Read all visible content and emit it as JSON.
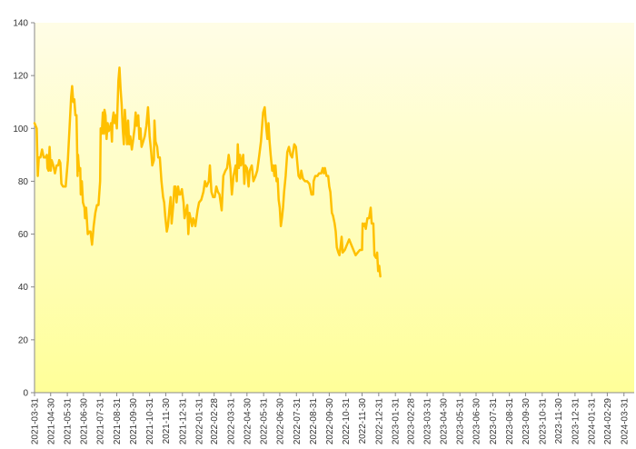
{
  "chart_data": {
    "type": "area",
    "title": "",
    "xlabel": "",
    "ylabel": "",
    "ylim": [
      0,
      140
    ],
    "yticks": [
      0,
      20,
      40,
      60,
      80,
      100,
      120,
      140
    ],
    "grid": false,
    "legend": "none",
    "colors": {
      "line": "#FFC000",
      "fill_top": "#FFFDE6",
      "fill_bottom": "#FFFF99",
      "axis": "#888888",
      "tick_text": "#333333"
    },
    "x_tick_labels": [
      "2021-03-31",
      "2021-04-30",
      "2021-05-31",
      "2021-06-30",
      "2021-07-31",
      "2021-08-31",
      "2021-09-30",
      "2021-10-31",
      "2021-11-30",
      "2021-12-31",
      "2022-01-31",
      "2022-02-28",
      "2022-03-31",
      "2022-04-30",
      "2022-05-31",
      "2022-06-30",
      "2022-07-31",
      "2022-08-31",
      "2022-09-30",
      "2022-10-31",
      "2022-11-30",
      "2022-12-31",
      "2023-01-31",
      "2023-02-28",
      "2023-03-31",
      "2023-04-30",
      "2023-05-31",
      "2023-06-30",
      "2023-07-31",
      "2023-08-31",
      "2023-09-30",
      "2023-10-31",
      "2023-11-30",
      "2023-12-31",
      "2024-01-31",
      "2024-02-29",
      "2024-03-31"
    ],
    "x_range": [
      "2021-03-31",
      "2024-04-19"
    ],
    "series": [
      {
        "points": [
          [
            "2021-03-31",
            102
          ],
          [
            "2021-04-02",
            101
          ],
          [
            "2021-04-04",
            100
          ],
          [
            "2021-04-06",
            82
          ],
          [
            "2021-04-08",
            89
          ],
          [
            "2021-04-11",
            89
          ],
          [
            "2021-04-14",
            92
          ],
          [
            "2021-04-17",
            89
          ],
          [
            "2021-04-20",
            89
          ],
          [
            "2021-04-23",
            90
          ],
          [
            "2021-04-24",
            85
          ],
          [
            "2021-04-26",
            84
          ],
          [
            "2021-04-28",
            93
          ],
          [
            "2021-04-30",
            84
          ],
          [
            "2021-05-02",
            88
          ],
          [
            "2021-05-05",
            86
          ],
          [
            "2021-05-08",
            83
          ],
          [
            "2021-05-11",
            86
          ],
          [
            "2021-05-14",
            86
          ],
          [
            "2021-05-16",
            88
          ],
          [
            "2021-05-18",
            87
          ],
          [
            "2021-05-20",
            79
          ],
          [
            "2021-05-23",
            78
          ],
          [
            "2021-05-26",
            78
          ],
          [
            "2021-05-28",
            78
          ],
          [
            "2021-06-01",
            88
          ],
          [
            "2021-06-04",
            100
          ],
          [
            "2021-06-07",
            112
          ],
          [
            "2021-06-09",
            116
          ],
          [
            "2021-06-11",
            110
          ],
          [
            "2021-06-13",
            111
          ],
          [
            "2021-06-15",
            105
          ],
          [
            "2021-06-17",
            105
          ],
          [
            "2021-06-19",
            82
          ],
          [
            "2021-06-20",
            90
          ],
          [
            "2021-06-22",
            84
          ],
          [
            "2021-06-24",
            85
          ],
          [
            "2021-06-25",
            75
          ],
          [
            "2021-06-27",
            80
          ],
          [
            "2021-06-29",
            72
          ],
          [
            "2021-07-02",
            70
          ],
          [
            "2021-07-03",
            66
          ],
          [
            "2021-07-05",
            70
          ],
          [
            "2021-07-08",
            60
          ],
          [
            "2021-07-11",
            61
          ],
          [
            "2021-07-13",
            61
          ],
          [
            "2021-07-16",
            56
          ],
          [
            "2021-07-19",
            63
          ],
          [
            "2021-07-22",
            68
          ],
          [
            "2021-07-25",
            71
          ],
          [
            "2021-07-28",
            71
          ],
          [
            "2021-07-31",
            80
          ],
          [
            "2021-08-01",
            100
          ],
          [
            "2021-08-03",
            98
          ],
          [
            "2021-08-05",
            106
          ],
          [
            "2021-08-07",
            98
          ],
          [
            "2021-08-08",
            107
          ],
          [
            "2021-08-10",
            105
          ],
          [
            "2021-08-12",
            96
          ],
          [
            "2021-08-14",
            102
          ],
          [
            "2021-08-16",
            99
          ],
          [
            "2021-08-18",
            100
          ],
          [
            "2021-08-20",
            102
          ],
          [
            "2021-08-22",
            95
          ],
          [
            "2021-08-23",
            103
          ],
          [
            "2021-08-25",
            106
          ],
          [
            "2021-08-27",
            102
          ],
          [
            "2021-08-29",
            105
          ],
          [
            "2021-08-31",
            100
          ],
          [
            "2021-09-03",
            118
          ],
          [
            "2021-09-05",
            123
          ],
          [
            "2021-09-07",
            115
          ],
          [
            "2021-09-09",
            109
          ],
          [
            "2021-09-11",
            100
          ],
          [
            "2021-09-13",
            94
          ],
          [
            "2021-09-15",
            107
          ],
          [
            "2021-09-17",
            101
          ],
          [
            "2021-09-19",
            94
          ],
          [
            "2021-09-21",
            103
          ],
          [
            "2021-09-23",
            94
          ],
          [
            "2021-09-25",
            97
          ],
          [
            "2021-09-28",
            92
          ],
          [
            "2021-09-30",
            95
          ],
          [
            "2021-10-03",
            100
          ],
          [
            "2021-10-05",
            106
          ],
          [
            "2021-10-07",
            101
          ],
          [
            "2021-10-10",
            105
          ],
          [
            "2021-10-12",
            96
          ],
          [
            "2021-10-14",
            100
          ],
          [
            "2021-10-16",
            93
          ],
          [
            "2021-10-19",
            95
          ],
          [
            "2021-10-22",
            97
          ],
          [
            "2021-10-25",
            101
          ],
          [
            "2021-10-28",
            108
          ],
          [
            "2021-10-31",
            97
          ],
          [
            "2021-11-03",
            91
          ],
          [
            "2021-11-05",
            86
          ],
          [
            "2021-11-08",
            88
          ],
          [
            "2021-11-09",
            103
          ],
          [
            "2021-11-11",
            95
          ],
          [
            "2021-11-14",
            93
          ],
          [
            "2021-11-16",
            89
          ],
          [
            "2021-11-19",
            89
          ],
          [
            "2021-11-22",
            80
          ],
          [
            "2021-11-25",
            74
          ],
          [
            "2021-11-27",
            72
          ],
          [
            "2021-11-29",
            67
          ],
          [
            "2021-12-02",
            61
          ],
          [
            "2021-12-04",
            63
          ],
          [
            "2021-12-07",
            70
          ],
          [
            "2021-12-09",
            74
          ],
          [
            "2021-12-11",
            64
          ],
          [
            "2021-12-14",
            71
          ],
          [
            "2021-12-16",
            78
          ],
          [
            "2021-12-18",
            78
          ],
          [
            "2021-12-20",
            72
          ],
          [
            "2021-12-23",
            78
          ],
          [
            "2021-12-25",
            75
          ],
          [
            "2021-12-27",
            75
          ],
          [
            "2021-12-30",
            77
          ],
          [
            "2022-01-02",
            72
          ],
          [
            "2022-01-04",
            66
          ],
          [
            "2022-01-06",
            68
          ],
          [
            "2022-01-09",
            71
          ],
          [
            "2022-01-11",
            60
          ],
          [
            "2022-01-13",
            68
          ],
          [
            "2022-01-15",
            66
          ],
          [
            "2022-01-18",
            63
          ],
          [
            "2022-01-20",
            66
          ],
          [
            "2022-01-22",
            65
          ],
          [
            "2022-01-24",
            63
          ],
          [
            "2022-01-26",
            66
          ],
          [
            "2022-01-28",
            69
          ],
          [
            "2022-01-31",
            72
          ],
          [
            "2022-02-04",
            73
          ],
          [
            "2022-02-08",
            76
          ],
          [
            "2022-02-11",
            80
          ],
          [
            "2022-02-14",
            78
          ],
          [
            "2022-02-18",
            80
          ],
          [
            "2022-02-20",
            86
          ],
          [
            "2022-02-23",
            76
          ],
          [
            "2022-02-26",
            74
          ],
          [
            "2022-03-01",
            74
          ],
          [
            "2022-03-04",
            78
          ],
          [
            "2022-03-07",
            76
          ],
          [
            "2022-03-10",
            75
          ],
          [
            "2022-03-14",
            69
          ],
          [
            "2022-03-17",
            82
          ],
          [
            "2022-03-21",
            84
          ],
          [
            "2022-03-24",
            85
          ],
          [
            "2022-03-27",
            90
          ],
          [
            "2022-03-30",
            85
          ],
          [
            "2022-04-02",
            75
          ],
          [
            "2022-04-05",
            82
          ],
          [
            "2022-04-09",
            86
          ],
          [
            "2022-04-11",
            80
          ],
          [
            "2022-04-13",
            94
          ],
          [
            "2022-04-15",
            85
          ],
          [
            "2022-04-17",
            90
          ],
          [
            "2022-04-19",
            86
          ],
          [
            "2022-04-23",
            90
          ],
          [
            "2022-04-25",
            79
          ],
          [
            "2022-04-27",
            86
          ],
          [
            "2022-04-30",
            85
          ],
          [
            "2022-05-03",
            78
          ],
          [
            "2022-05-05",
            84
          ],
          [
            "2022-05-09",
            86
          ],
          [
            "2022-05-12",
            80
          ],
          [
            "2022-05-16",
            82
          ],
          [
            "2022-05-19",
            84
          ],
          [
            "2022-05-23",
            90
          ],
          [
            "2022-05-26",
            95
          ],
          [
            "2022-05-30",
            106
          ],
          [
            "2022-06-02",
            108
          ],
          [
            "2022-06-05",
            100
          ],
          [
            "2022-06-07",
            96
          ],
          [
            "2022-06-09",
            102
          ],
          [
            "2022-06-11",
            95
          ],
          [
            "2022-06-13",
            90
          ],
          [
            "2022-06-16",
            84
          ],
          [
            "2022-06-18",
            86
          ],
          [
            "2022-06-20",
            82
          ],
          [
            "2022-06-22",
            86
          ],
          [
            "2022-06-24",
            80
          ],
          [
            "2022-06-26",
            81
          ],
          [
            "2022-06-28",
            73
          ],
          [
            "2022-06-30",
            70
          ],
          [
            "2022-07-02",
            63
          ],
          [
            "2022-07-04",
            66
          ],
          [
            "2022-07-06",
            70
          ],
          [
            "2022-07-08",
            76
          ],
          [
            "2022-07-11",
            82
          ],
          [
            "2022-07-14",
            91
          ],
          [
            "2022-07-17",
            93
          ],
          [
            "2022-07-20",
            90
          ],
          [
            "2022-07-23",
            89
          ],
          [
            "2022-07-27",
            94
          ],
          [
            "2022-07-30",
            93
          ],
          [
            "2022-08-02",
            86
          ],
          [
            "2022-08-04",
            82
          ],
          [
            "2022-08-07",
            81
          ],
          [
            "2022-08-09",
            84
          ],
          [
            "2022-08-12",
            81
          ],
          [
            "2022-08-16",
            80
          ],
          [
            "2022-08-20",
            80
          ],
          [
            "2022-08-24",
            79
          ],
          [
            "2022-08-28",
            75
          ],
          [
            "2022-08-31",
            75
          ],
          [
            "2022-09-01",
            80
          ],
          [
            "2022-09-04",
            82
          ],
          [
            "2022-09-08",
            82
          ],
          [
            "2022-09-11",
            83
          ],
          [
            "2022-09-15",
            83
          ],
          [
            "2022-09-18",
            85
          ],
          [
            "2022-09-20",
            83
          ],
          [
            "2022-09-22",
            85
          ],
          [
            "2022-09-25",
            82
          ],
          [
            "2022-09-28",
            82
          ],
          [
            "2022-09-30",
            78
          ],
          [
            "2022-10-02",
            76
          ],
          [
            "2022-10-05",
            68
          ],
          [
            "2022-10-07",
            67
          ],
          [
            "2022-10-10",
            64
          ],
          [
            "2022-10-12",
            61
          ],
          [
            "2022-10-14",
            55
          ],
          [
            "2022-10-17",
            53
          ],
          [
            "2022-10-19",
            52
          ],
          [
            "2022-10-21",
            55
          ],
          [
            "2022-10-23",
            59
          ],
          [
            "2022-10-25",
            53
          ],
          [
            "2022-10-29",
            54
          ],
          [
            "2022-11-02",
            56
          ],
          [
            "2022-11-06",
            58
          ],
          [
            "2022-11-10",
            56
          ],
          [
            "2022-11-14",
            54
          ],
          [
            "2022-11-18",
            52
          ],
          [
            "2022-11-22",
            53
          ],
          [
            "2022-11-26",
            54
          ],
          [
            "2022-11-30",
            54
          ],
          [
            "2022-12-01",
            64
          ],
          [
            "2022-12-03",
            63
          ],
          [
            "2022-12-05",
            64
          ],
          [
            "2022-12-07",
            62
          ],
          [
            "2022-12-10",
            66
          ],
          [
            "2022-12-13",
            66
          ],
          [
            "2022-12-16",
            70
          ],
          [
            "2022-12-18",
            64
          ],
          [
            "2022-12-21",
            64
          ],
          [
            "2022-12-23",
            52
          ],
          [
            "2022-12-26",
            51
          ],
          [
            "2022-12-28",
            53
          ],
          [
            "2022-12-30",
            46
          ],
          [
            "2023-01-01",
            48
          ],
          [
            "2023-01-03",
            44
          ]
        ]
      }
    ]
  }
}
